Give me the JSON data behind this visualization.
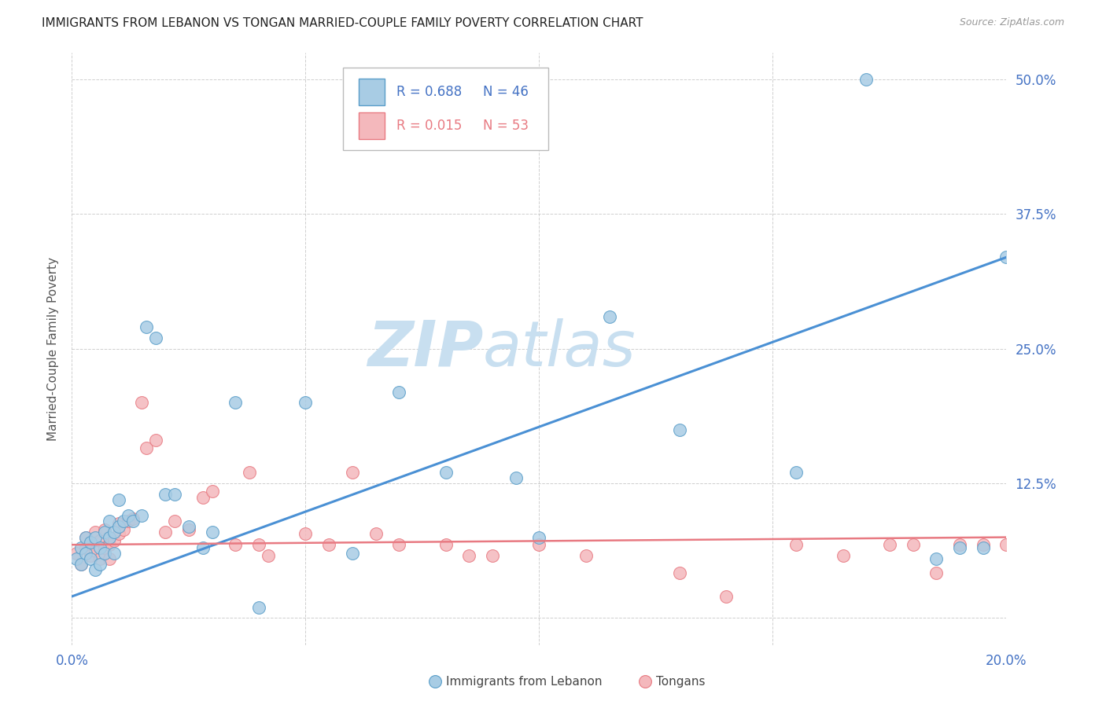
{
  "title": "IMMIGRANTS FROM LEBANON VS TONGAN MARRIED-COUPLE FAMILY POVERTY CORRELATION CHART",
  "source": "Source: ZipAtlas.com",
  "ylabel": "Married-Couple Family Poverty",
  "ytick_positions": [
    0.0,
    0.125,
    0.25,
    0.375,
    0.5
  ],
  "ytick_labels": [
    "",
    "12.5%",
    "25.0%",
    "37.5%",
    "50.0%"
  ],
  "xtick_positions": [
    0.0,
    0.05,
    0.1,
    0.15,
    0.2
  ],
  "xtick_labels": [
    "0.0%",
    "",
    "",
    "",
    "20.0%"
  ],
  "xlim": [
    0.0,
    0.2
  ],
  "ylim": [
    -0.025,
    0.525
  ],
  "watermark_zip": "ZIP",
  "watermark_atlas": "atlas",
  "watermark_color": "#c8dff0",
  "legend_r1": "R = 0.688",
  "legend_n1": "N = 46",
  "legend_r2": "R = 0.015",
  "legend_n2": "N = 53",
  "series1_face_color": "#a8cce4",
  "series2_face_color": "#f4b8bc",
  "series1_edge_color": "#5a9ec9",
  "series2_edge_color": "#e87a82",
  "line1_color": "#4a90d4",
  "line2_color": "#e87a82",
  "series1_label": "Immigrants from Lebanon",
  "series2_label": "Tongans",
  "blue_line_x0": 0.0,
  "blue_line_y0": 0.02,
  "blue_line_x1": 0.2,
  "blue_line_y1": 0.335,
  "pink_line_x0": 0.0,
  "pink_line_y0": 0.068,
  "pink_line_x1": 0.2,
  "pink_line_y1": 0.075,
  "blue_x": [
    0.001,
    0.002,
    0.002,
    0.003,
    0.003,
    0.004,
    0.004,
    0.005,
    0.005,
    0.006,
    0.006,
    0.007,
    0.007,
    0.008,
    0.008,
    0.009,
    0.009,
    0.01,
    0.01,
    0.011,
    0.012,
    0.013,
    0.015,
    0.016,
    0.018,
    0.02,
    0.022,
    0.025,
    0.028,
    0.03,
    0.035,
    0.04,
    0.05,
    0.06,
    0.07,
    0.08,
    0.095,
    0.1,
    0.115,
    0.13,
    0.155,
    0.17,
    0.185,
    0.19,
    0.195,
    0.2
  ],
  "blue_y": [
    0.055,
    0.05,
    0.065,
    0.06,
    0.075,
    0.055,
    0.07,
    0.045,
    0.075,
    0.065,
    0.05,
    0.08,
    0.06,
    0.075,
    0.09,
    0.08,
    0.06,
    0.11,
    0.085,
    0.09,
    0.095,
    0.09,
    0.095,
    0.27,
    0.26,
    0.115,
    0.115,
    0.085,
    0.065,
    0.08,
    0.2,
    0.01,
    0.2,
    0.06,
    0.21,
    0.135,
    0.13,
    0.075,
    0.28,
    0.175,
    0.135,
    0.5,
    0.055,
    0.065,
    0.065,
    0.335
  ],
  "pink_x": [
    0.001,
    0.002,
    0.003,
    0.003,
    0.004,
    0.004,
    0.005,
    0.005,
    0.006,
    0.006,
    0.007,
    0.007,
    0.008,
    0.008,
    0.009,
    0.01,
    0.01,
    0.011,
    0.012,
    0.013,
    0.015,
    0.016,
    0.018,
    0.02,
    0.022,
    0.025,
    0.028,
    0.03,
    0.035,
    0.038,
    0.04,
    0.042,
    0.05,
    0.055,
    0.06,
    0.065,
    0.07,
    0.08,
    0.085,
    0.09,
    0.1,
    0.11,
    0.13,
    0.14,
    0.155,
    0.165,
    0.175,
    0.18,
    0.185,
    0.19,
    0.195,
    0.2,
    0.205
  ],
  "pink_y": [
    0.06,
    0.05,
    0.065,
    0.075,
    0.058,
    0.07,
    0.08,
    0.062,
    0.055,
    0.072,
    0.065,
    0.082,
    0.055,
    0.068,
    0.072,
    0.078,
    0.088,
    0.082,
    0.09,
    0.092,
    0.2,
    0.158,
    0.165,
    0.08,
    0.09,
    0.082,
    0.112,
    0.118,
    0.068,
    0.135,
    0.068,
    0.058,
    0.078,
    0.068,
    0.135,
    0.078,
    0.068,
    0.068,
    0.058,
    0.058,
    0.068,
    0.058,
    0.042,
    0.02,
    0.068,
    0.058,
    0.068,
    0.068,
    0.042,
    0.068,
    0.068,
    0.068,
    0.068
  ]
}
